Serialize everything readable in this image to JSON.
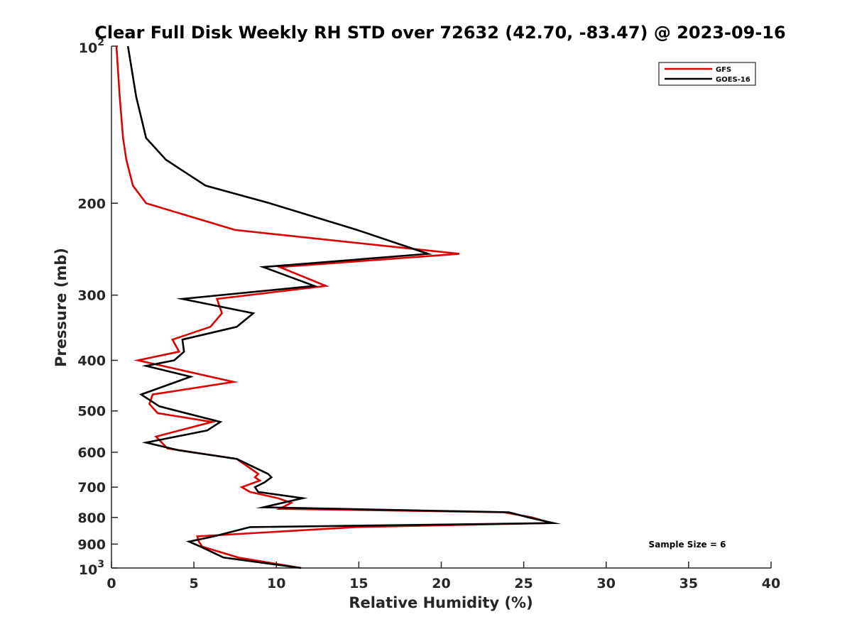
{
  "chart_data": {
    "type": "line",
    "title": "Clear Full Disk Weekly RH STD over 72632 (42.70, -83.47) @ 2023-09-16",
    "xlabel": "Relative Humidity (%)",
    "ylabel": "Pressure (mb)",
    "xlim": [
      0,
      40
    ],
    "ylim": [
      100,
      1000
    ],
    "yscale": "log",
    "y_reversed": true,
    "grid": false,
    "legend_position": "top-right",
    "x_ticks": [
      "0",
      "5",
      "10",
      "15",
      "20",
      "25",
      "30",
      "35",
      "40"
    ],
    "y_ticks": [
      {
        "value": 100,
        "base": "10",
        "exp": "2"
      },
      {
        "value": 200,
        "label": "200"
      },
      {
        "value": 300,
        "label": "300"
      },
      {
        "value": 400,
        "label": "400"
      },
      {
        "value": 500,
        "label": "500"
      },
      {
        "value": 600,
        "label": "600"
      },
      {
        "value": 700,
        "label": "700"
      },
      {
        "value": 800,
        "label": "800"
      },
      {
        "value": 900,
        "label": "900"
      },
      {
        "value": 1000,
        "base": "10",
        "exp": "3"
      }
    ],
    "annotation": "Sample Size = 6",
    "series": [
      {
        "name": "GFS",
        "color": "#dd0000",
        "points": [
          [
            0.3,
            100
          ],
          [
            0.5,
            125
          ],
          [
            0.7,
            150
          ],
          [
            0.9,
            165
          ],
          [
            1.3,
            185
          ],
          [
            2.1,
            200
          ],
          [
            7.5,
            225
          ],
          [
            21.1,
            250
          ],
          [
            10.2,
            265
          ],
          [
            13.0,
            288
          ],
          [
            6.4,
            305
          ],
          [
            6.7,
            325
          ],
          [
            6.0,
            345
          ],
          [
            3.7,
            365
          ],
          [
            4.1,
            385
          ],
          [
            1.6,
            400
          ],
          [
            7.4,
            440
          ],
          [
            2.5,
            465
          ],
          [
            2.3,
            485
          ],
          [
            2.8,
            505
          ],
          [
            6.1,
            525
          ],
          [
            2.7,
            560
          ],
          [
            3.4,
            590
          ],
          [
            7.6,
            618
          ],
          [
            8.9,
            660
          ],
          [
            8.7,
            670
          ],
          [
            9.0,
            680
          ],
          [
            7.9,
            700
          ],
          [
            8.4,
            715
          ],
          [
            10.1,
            735
          ],
          [
            10.9,
            750
          ],
          [
            10.2,
            770
          ],
          [
            23.8,
            782
          ],
          [
            25.5,
            800
          ],
          [
            26.7,
            820
          ],
          [
            14.8,
            835
          ],
          [
            5.2,
            870
          ],
          [
            5.3,
            890
          ],
          [
            5.5,
            910
          ],
          [
            7.7,
            955
          ],
          [
            11.5,
            1000
          ]
        ]
      },
      {
        "name": "GOES-16",
        "color": "#000000",
        "points": [
          [
            1.0,
            100
          ],
          [
            1.5,
            125
          ],
          [
            2.1,
            150
          ],
          [
            3.3,
            165
          ],
          [
            5.7,
            185
          ],
          [
            9.6,
            200
          ],
          [
            14.9,
            225
          ],
          [
            19.2,
            250
          ],
          [
            9.2,
            265
          ],
          [
            12.3,
            288
          ],
          [
            4.3,
            305
          ],
          [
            8.6,
            325
          ],
          [
            7.6,
            345
          ],
          [
            4.3,
            365
          ],
          [
            4.4,
            385
          ],
          [
            3.8,
            400
          ],
          [
            2.1,
            410
          ],
          [
            4.8,
            430
          ],
          [
            1.8,
            465
          ],
          [
            2.9,
            490
          ],
          [
            6.6,
            525
          ],
          [
            5.8,
            545
          ],
          [
            2.1,
            575
          ],
          [
            4.1,
            595
          ],
          [
            7.6,
            618
          ],
          [
            9.5,
            660
          ],
          [
            9.7,
            670
          ],
          [
            9.3,
            685
          ],
          [
            8.7,
            700
          ],
          [
            8.9,
            715
          ],
          [
            11.6,
            735
          ],
          [
            9.2,
            765
          ],
          [
            24.1,
            782
          ],
          [
            25.3,
            800
          ],
          [
            26.8,
            820
          ],
          [
            8.4,
            835
          ],
          [
            6.2,
            870
          ],
          [
            4.7,
            890
          ],
          [
            5.4,
            910
          ],
          [
            6.8,
            955
          ],
          [
            11.5,
            1000
          ]
        ]
      }
    ]
  }
}
